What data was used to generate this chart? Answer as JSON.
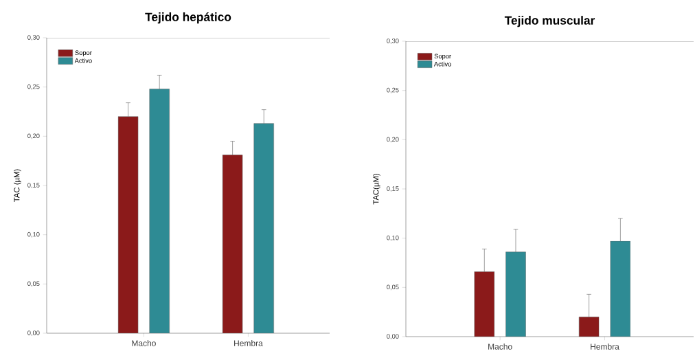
{
  "chart_data": [
    {
      "type": "bar",
      "title": "Tejido hepático",
      "ylabel": "TAC (µM)",
      "categories": [
        "Macho",
        "Hembra"
      ],
      "series": [
        {
          "name": "Sopor",
          "color": "#8b1a1a",
          "values": [
            0.22,
            0.181
          ],
          "errors": [
            [
              0.22,
              0.234
            ],
            [
              0.181,
              0.195
            ]
          ]
        },
        {
          "name": "Activo",
          "color": "#2e8b94",
          "values": [
            0.248,
            0.213
          ],
          "errors": [
            [
              0.248,
              0.262
            ],
            [
              0.213,
              0.227
            ]
          ]
        }
      ],
      "ylim": [
        0,
        0.3
      ],
      "yticks": [
        {
          "value": 0,
          "label": "0,00"
        },
        {
          "value": 0.05,
          "label": "0,05"
        },
        {
          "value": 0.1,
          "label": "0,10"
        },
        {
          "value": 0.15,
          "label": "0,15"
        },
        {
          "value": 0.2,
          "label": "0,20"
        },
        {
          "value": 0.25,
          "label": "0,25"
        },
        {
          "value": 0.3,
          "label": "0,30"
        }
      ],
      "legend": "top left",
      "grid": false
    },
    {
      "type": "bar",
      "title": "Tejido muscular",
      "ylabel": "TAC(µM)",
      "categories": [
        "Macho",
        "Hembra"
      ],
      "series": [
        {
          "name": "Sopor",
          "color": "#8b1a1a",
          "values": [
            0.066,
            0.02
          ],
          "errors": [
            [
              0.066,
              0.089
            ],
            [
              0.02,
              0.043
            ]
          ]
        },
        {
          "name": "Activo",
          "color": "#2e8b94",
          "values": [
            0.086,
            0.097
          ],
          "errors": [
            [
              0.086,
              0.109
            ],
            [
              0.097,
              0.12
            ]
          ]
        }
      ],
      "ylim": [
        0,
        0.3
      ],
      "yticks": [
        {
          "value": 0,
          "label": "0,00"
        },
        {
          "value": 0.05,
          "label": "0,05"
        },
        {
          "value": 0.1,
          "label": "0,10"
        },
        {
          "value": 0.15,
          "label": "0,15"
        },
        {
          "value": 0.2,
          "label": "0,20"
        },
        {
          "value": 0.25,
          "label": "0,25"
        },
        {
          "value": 0.3,
          "label": "0,30"
        }
      ],
      "legend": "top left",
      "grid": false
    }
  ]
}
